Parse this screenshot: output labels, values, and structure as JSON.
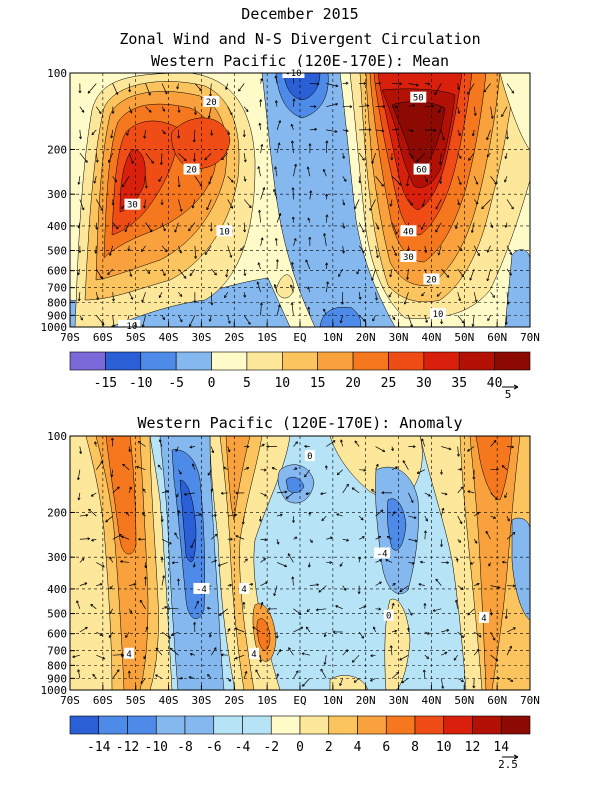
{
  "figure": {
    "title_line1": "December 2015",
    "title_line2": "Zonal Wind and N-S Divergent Circulation",
    "colors": {
      "deep_purple": "#7a67d8",
      "blue_dark": "#2a5fd6",
      "blue": "#4e8ae8",
      "blue_light": "#86b8f0",
      "cyan_light": "#b7e3f7",
      "cream": "#fffbc9",
      "yellow": "#fde79a",
      "yellow_orange": "#fcc45f",
      "orange": "#f9a13c",
      "orange_dark": "#f5781f",
      "red_orange": "#ef4d15",
      "red": "#d9200c",
      "dark_red": "#b31006",
      "darkest_red": "#8c0a02"
    }
  },
  "chart_data": [
    {
      "type": "heatmap",
      "title": "Western Pacific (120E-170E): Mean",
      "x_tick_labels": [
        "70S",
        "60S",
        "50S",
        "40S",
        "30S",
        "20S",
        "10S",
        "EQ",
        "10N",
        "20N",
        "30N",
        "40N",
        "50N",
        "60N",
        "70N"
      ],
      "x_values": [
        -70,
        -60,
        -50,
        -40,
        -30,
        -20,
        -10,
        0,
        10,
        20,
        30,
        40,
        50,
        60,
        70
      ],
      "y_tick_labels": [
        "100",
        "200",
        "300",
        "400",
        "500",
        "600",
        "700",
        "800",
        "900",
        "1000"
      ],
      "y_values": [
        100,
        200,
        300,
        400,
        500,
        600,
        700,
        800,
        900,
        1000
      ],
      "y_scale": "log",
      "xlim": [
        -70,
        70
      ],
      "ylim": [
        1000,
        100
      ],
      "grid": true,
      "contour_labels": [
        {
          "text": "20",
          "lat": -27,
          "p": 130
        },
        {
          "text": "20",
          "lat": -33,
          "p": 240
        },
        {
          "text": "30",
          "lat": -51,
          "p": 330
        },
        {
          "text": "10",
          "lat": -23,
          "p": 420
        },
        {
          "text": "-10",
          "lat": -2,
          "p": 100
        },
        {
          "text": "50",
          "lat": 36,
          "p": 125
        },
        {
          "text": "60",
          "lat": 37,
          "p": 240
        },
        {
          "text": "40",
          "lat": 33,
          "p": 420
        },
        {
          "text": "30",
          "lat": 33,
          "p": 530
        },
        {
          "text": "20",
          "lat": 40,
          "p": 650
        },
        {
          "text": "10",
          "lat": 42,
          "p": 890
        },
        {
          "text": "-10",
          "lat": -52,
          "p": 990
        }
      ],
      "colorbar": {
        "labels": [
          "-15",
          "-10",
          "-5",
          "0",
          "5",
          "10",
          "15",
          "20",
          "25",
          "30",
          "35",
          "40"
        ],
        "levels": [
          -15,
          -10,
          -5,
          0,
          5,
          10,
          15,
          20,
          25,
          30,
          35,
          40
        ],
        "vector_reference": "5"
      }
    },
    {
      "type": "heatmap",
      "title": "Western Pacific (120E-170E): Anomaly",
      "x_tick_labels": [
        "70S",
        "60S",
        "50S",
        "40S",
        "30S",
        "20S",
        "10S",
        "EQ",
        "10N",
        "20N",
        "30N",
        "40N",
        "50N",
        "60N",
        "70N"
      ],
      "x_values": [
        -70,
        -60,
        -50,
        -40,
        -30,
        -20,
        -10,
        0,
        10,
        20,
        30,
        40,
        50,
        60,
        70
      ],
      "y_tick_labels": [
        "100",
        "200",
        "300",
        "400",
        "500",
        "600",
        "700",
        "800",
        "900",
        "1000"
      ],
      "y_values": [
        100,
        200,
        300,
        400,
        500,
        600,
        700,
        800,
        900,
        1000
      ],
      "y_scale": "log",
      "xlim": [
        -70,
        70
      ],
      "ylim": [
        1000,
        100
      ],
      "grid": true,
      "contour_labels": [
        {
          "text": "0",
          "lat": 3,
          "p": 120
        },
        {
          "text": "-4",
          "lat": 25,
          "p": 290
        },
        {
          "text": "-4",
          "lat": -30,
          "p": 400
        },
        {
          "text": "4",
          "lat": -17,
          "p": 400
        },
        {
          "text": "0",
          "lat": 27,
          "p": 510
        },
        {
          "text": "4",
          "lat": 56,
          "p": 520
        },
        {
          "text": "4",
          "lat": -52,
          "p": 720
        },
        {
          "text": "4",
          "lat": -14,
          "p": 720
        }
      ],
      "colorbar": {
        "labels": [
          "-14",
          "-12",
          "-10",
          "-8",
          "-6",
          "-4",
          "-2",
          "0",
          "2",
          "4",
          "6",
          "8",
          "10",
          "12",
          "14"
        ],
        "levels": [
          -14,
          -12,
          -10,
          -8,
          -6,
          -4,
          -2,
          0,
          2,
          4,
          6,
          8,
          10,
          12,
          14
        ],
        "vector_reference": "2.5"
      }
    }
  ]
}
